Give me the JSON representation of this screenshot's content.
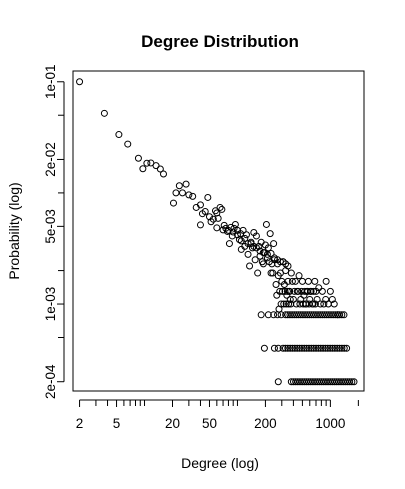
{
  "chart_data": {
    "type": "scatter",
    "title": "Degree Distribution",
    "xlabel": "Degree (log)",
    "ylabel": "Probability (log)",
    "x_scale": "log",
    "y_scale": "log",
    "xlim": [
      1.7,
      2300
    ],
    "ylim": [
      0.000165,
      0.125
    ],
    "x_ticks": [
      2,
      5,
      20,
      50,
      200,
      1000
    ],
    "x_tick_labels": [
      "2",
      "5",
      "20",
      "50",
      "200",
      "1000"
    ],
    "y_ticks": [
      0.1,
      0.02,
      0.005,
      0.001,
      0.0002
    ],
    "y_tick_labels": [
      "1e-01",
      "2e-02",
      "5e-03",
      "1e-03",
      "2e-04"
    ],
    "grid": false,
    "series": [
      {
        "points": [
          [
            2,
            0.1
          ],
          [
            3.7,
            0.052
          ],
          [
            5.3,
            0.0335
          ],
          [
            6.6,
            0.0275
          ],
          [
            8.6,
            0.0205
          ],
          [
            9.6,
            0.0165
          ],
          [
            10.6,
            0.0185
          ],
          [
            11.7,
            0.0186
          ],
          [
            13.3,
            0.0176
          ],
          [
            14.8,
            0.0164
          ],
          [
            16,
            0.0148
          ],
          [
            20.5,
            0.0081
          ],
          [
            21.8,
            0.01
          ],
          [
            23.7,
            0.0116
          ],
          [
            25.6,
            0.01
          ],
          [
            28,
            0.012
          ],
          [
            30,
            0.0096
          ],
          [
            33,
            0.0093
          ],
          [
            36,
            0.0074
          ],
          [
            40,
            0.0078
          ],
          [
            42,
            0.0065
          ],
          [
            45,
            0.0068
          ],
          [
            48,
            0.0091
          ],
          [
            50,
            0.0061
          ],
          [
            52,
            0.0055
          ],
          [
            55,
            0.0058
          ],
          [
            58,
            0.0069
          ],
          [
            60,
            0.0066
          ],
          [
            62,
            0.0059
          ],
          [
            65,
            0.0074
          ],
          [
            68,
            0.0071
          ],
          [
            72,
            0.0051
          ],
          [
            75,
            0.0048
          ],
          [
            78,
            0.0045
          ],
          [
            82,
            0.0035
          ],
          [
            85,
            0.0049
          ],
          [
            88,
            0.0041
          ],
          [
            92,
            0.0048
          ],
          [
            95,
            0.0052
          ],
          [
            100,
            0.0046
          ],
          [
            105,
            0.0038
          ],
          [
            108,
            0.0043
          ],
          [
            110,
            0.0031
          ],
          [
            115,
            0.0046
          ],
          [
            120,
            0.0033
          ],
          [
            125,
            0.0042
          ],
          [
            130,
            0.0028
          ],
          [
            135,
            0.0022
          ],
          [
            140,
            0.0036
          ],
          [
            145,
            0.0032
          ],
          [
            150,
            0.0044
          ],
          [
            155,
            0.0025
          ],
          [
            160,
            0.0041
          ],
          [
            165,
            0.0019
          ],
          [
            170,
            0.0033
          ],
          [
            175,
            0.0027
          ],
          [
            180,
            0.0036
          ],
          [
            185,
            0.0024
          ],
          [
            190,
            0.0023
          ],
          [
            195,
            0.0029
          ],
          [
            200,
            0.0034
          ],
          [
            205,
            0.0052
          ],
          [
            210,
            0.0026
          ],
          [
            215,
            0.0032
          ],
          [
            220,
            0.0024
          ],
          [
            225,
            0.0043
          ],
          [
            230,
            0.0019
          ],
          [
            235,
            0.0023
          ],
          [
            240,
            0.0019
          ],
          [
            245,
            0.0035
          ],
          [
            250,
            0.0025
          ],
          [
            260,
            0.0015
          ],
          [
            270,
            0.0023
          ],
          [
            280,
            0.0009
          ],
          [
            290,
            0.0019
          ],
          [
            300,
            0.0016
          ],
          [
            310,
            0.0024
          ],
          [
            320,
            0.0015
          ],
          [
            330,
            0.002
          ],
          [
            340,
            0.0012
          ],
          [
            350,
            0.0016
          ],
          [
            360,
            0.0013
          ],
          [
            370,
            0.0011
          ],
          [
            380,
            0.0019
          ],
          [
            390,
            0.0016
          ],
          [
            400,
            0.0011
          ],
          [
            420,
            0.0016
          ],
          [
            440,
            0.0013
          ],
          [
            460,
            0.0018
          ],
          [
            480,
            0.0011
          ],
          [
            500,
            0.0016
          ],
          [
            520,
            0.0012
          ],
          [
            540,
            0.001
          ],
          [
            560,
            0.0013
          ],
          [
            580,
            0.0016
          ],
          [
            600,
            0.0011
          ],
          [
            620,
            0.0013
          ],
          [
            650,
            0.001
          ],
          [
            680,
            0.0016
          ],
          [
            700,
            0.0013
          ],
          [
            720,
            0.0011
          ],
          [
            750,
            0.0014
          ],
          [
            780,
            0.001
          ],
          [
            820,
            0.0013
          ],
          [
            850,
            0.001
          ],
          [
            890,
            0.0011
          ],
          [
            900,
            0.0016
          ],
          [
            950,
            0.001
          ],
          [
            1000,
            0.0013
          ],
          [
            1050,
            0.0011
          ],
          [
            1100,
            0.001
          ],
          [
            1200,
            0.0008
          ],
          [
            265,
            0.0012
          ],
          [
            275,
            0.0018
          ],
          [
            285,
            0.0013
          ],
          [
            295,
            0.001
          ],
          [
            305,
            0.0013
          ],
          [
            315,
            0.001
          ],
          [
            325,
            0.0013
          ],
          [
            335,
            0.001
          ],
          [
            345,
            0.0013
          ],
          [
            355,
            0.001
          ],
          [
            365,
            0.0013
          ],
          [
            375,
            0.001
          ],
          [
            410,
            0.0013
          ],
          [
            430,
            0.001
          ],
          [
            450,
            0.0013
          ],
          [
            470,
            0.001
          ],
          [
            490,
            0.0013
          ],
          [
            510,
            0.001
          ],
          [
            530,
            0.0013
          ],
          [
            550,
            0.001
          ],
          [
            570,
            0.0013
          ],
          [
            590,
            0.001
          ],
          [
            610,
            0.0013
          ],
          [
            640,
            0.001
          ],
          [
            660,
            0.0013
          ],
          [
            690,
            0.001
          ],
          [
            40,
            0.00515
          ],
          [
            60,
            0.00485
          ],
          [
            70,
            0.00465
          ],
          [
            80,
            0.0046
          ],
          [
            90,
            0.00445
          ],
          [
            100,
            0.0042
          ],
          [
            110,
            0.0037
          ],
          [
            120,
            0.0039
          ],
          [
            130,
            0.0035
          ],
          [
            140,
            0.0035
          ],
          [
            150,
            0.0033
          ],
          [
            160,
            0.0032
          ],
          [
            175,
            0.003
          ],
          [
            190,
            0.0029
          ],
          [
            210,
            0.0028
          ],
          [
            230,
            0.00285
          ],
          [
            250,
            0.0026
          ],
          [
            270,
            0.0025
          ],
          [
            290,
            0.0024
          ],
          [
            310,
            0.0024
          ],
          [
            330,
            0.0023
          ],
          [
            350,
            0.0022
          ]
        ],
        "bands": [
          {
            "y": 0.0008,
            "x_from": 330,
            "x_to": 1450,
            "x_step_factor": 1.055
          },
          {
            "y": 0.0004,
            "x_from": 310,
            "x_to": 1550,
            "x_step_factor": 1.06
          },
          {
            "y": 0.0002,
            "x_from": 380,
            "x_to": 1850,
            "x_step_factor": 1.055
          }
        ],
        "extra_points": [
          [
            180,
            0.0008
          ],
          [
            215,
            0.0008
          ],
          [
            245,
            0.0008
          ],
          [
            270,
            0.0008
          ],
          [
            295,
            0.0008
          ],
          [
            195,
            0.0004
          ],
          [
            250,
            0.0004
          ],
          [
            275,
            0.0004
          ],
          [
            275,
            0.0002
          ]
        ]
      }
    ]
  }
}
